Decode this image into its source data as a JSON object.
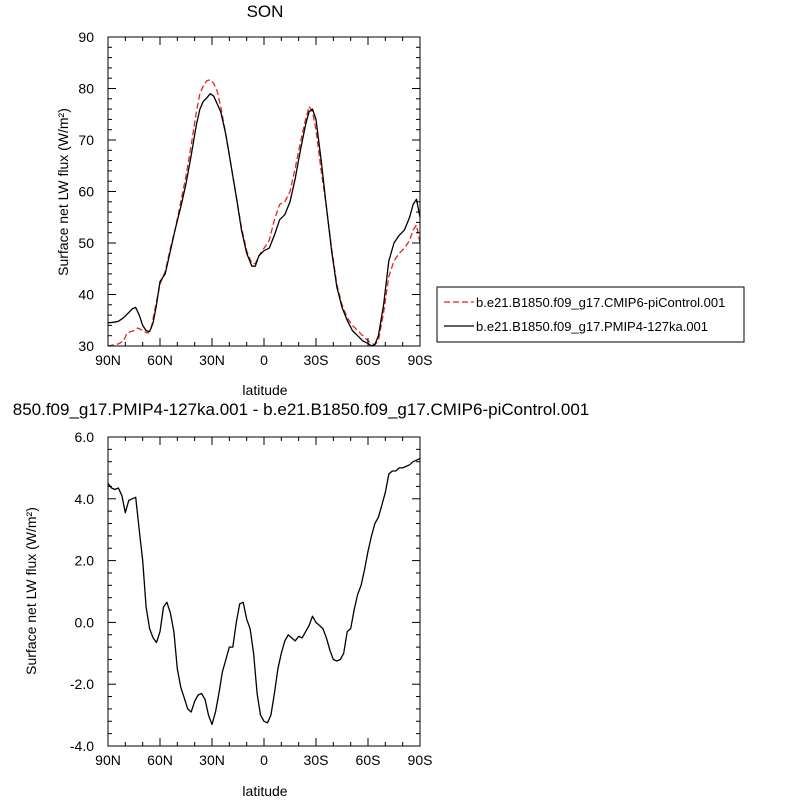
{
  "chart_data": [
    {
      "type": "line",
      "title": "SON",
      "xlabel": "latitude",
      "ylabel": "Surface net LW flux (W/m²)",
      "ylim": [
        30,
        90
      ],
      "xlim": [
        90,
        -90
      ],
      "x_tick_values": [
        90,
        60,
        30,
        0,
        -30,
        -60,
        -90
      ],
      "x_tick_labels": [
        "90N",
        "60N",
        "30N",
        "0",
        "30S",
        "60S",
        "90S"
      ],
      "y_ticks": [
        30,
        40,
        50,
        60,
        70,
        80,
        90
      ],
      "y_tick_labels": [
        "30",
        "40",
        "50",
        "60",
        "70",
        "80",
        "90"
      ],
      "grid": false,
      "legend_position": "right",
      "series": [
        {
          "name": "b.e21.B1850.f09_g17.CMIP6-piControl.001",
          "color": "#e0241c",
          "dash": "dashed",
          "x": [
            90,
            87,
            84,
            81,
            79,
            77,
            75,
            73,
            71,
            69,
            67,
            65,
            63,
            60,
            57,
            54,
            51,
            48,
            45,
            42,
            39,
            37,
            35,
            33,
            31,
            29,
            27,
            25,
            22,
            19,
            16,
            13,
            10,
            7,
            5,
            3,
            0,
            -3,
            -6,
            -9,
            -12,
            -15,
            -18,
            -21,
            -24,
            -26,
            -28,
            -30,
            -33,
            -36,
            -39,
            -42,
            -45,
            -48,
            -51,
            -54,
            -57,
            -60,
            -62,
            -64,
            -66,
            -69,
            -72,
            -75,
            -78,
            -81,
            -84,
            -86,
            -88,
            -90
          ],
          "y": [
            30.0,
            30.2,
            30.4,
            31.0,
            32.5,
            32.8,
            33.0,
            33.5,
            33.2,
            32.8,
            32.5,
            33.5,
            37.0,
            42.0,
            44.5,
            49.0,
            53.0,
            58.0,
            63.0,
            69.0,
            75.5,
            79.0,
            80.5,
            81.5,
            81.7,
            81.0,
            79.5,
            76.5,
            71.0,
            65.0,
            59.0,
            53.0,
            48.5,
            46.0,
            46.0,
            47.5,
            49.0,
            50.5,
            54.5,
            57.5,
            58.0,
            60.0,
            64.5,
            69.5,
            74.0,
            76.5,
            75.5,
            72.0,
            64.0,
            57.0,
            49.0,
            42.0,
            38.0,
            35.5,
            34.0,
            33.0,
            32.0,
            31.0,
            30.5,
            30.3,
            31.0,
            36.5,
            43.5,
            46.5,
            48.0,
            49.0,
            50.5,
            52.5,
            53.5,
            50.0
          ]
        },
        {
          "name": "b.e21.B1850.f09_g17.PMIP4-127ka.001",
          "color": "#000000",
          "dash": "solid",
          "x": [
            90,
            87,
            84,
            81,
            78,
            76,
            74,
            72,
            70,
            68,
            66,
            64,
            62,
            60,
            57,
            54,
            51,
            48,
            45,
            42,
            39,
            37,
            35,
            33,
            31,
            29,
            27,
            25,
            22,
            19,
            16,
            13,
            10,
            7,
            5,
            3,
            0,
            -3,
            -6,
            -9,
            -12,
            -15,
            -18,
            -21,
            -24,
            -26,
            -28,
            -30,
            -33,
            -36,
            -39,
            -42,
            -45,
            -48,
            -51,
            -54,
            -57,
            -60,
            -62,
            -64,
            -66,
            -69,
            -72,
            -75,
            -78,
            -81,
            -84,
            -86,
            -88,
            -90
          ],
          "y": [
            34.5,
            34.6,
            34.8,
            35.5,
            36.5,
            37.2,
            37.5,
            36.0,
            34.0,
            33.0,
            32.8,
            34.5,
            38.0,
            42.5,
            44.0,
            48.5,
            53.0,
            57.0,
            61.5,
            67.0,
            73.0,
            76.0,
            77.5,
            78.2,
            79.0,
            78.5,
            77.0,
            75.5,
            71.0,
            65.0,
            59.0,
            52.5,
            48.0,
            45.5,
            45.5,
            47.5,
            48.5,
            49.0,
            51.5,
            54.5,
            55.5,
            58.0,
            62.5,
            68.0,
            73.0,
            75.5,
            76.0,
            74.0,
            66.0,
            57.0,
            48.5,
            41.5,
            37.5,
            35.0,
            33.0,
            32.0,
            31.0,
            30.5,
            30.0,
            30.3,
            32.0,
            38.0,
            46.5,
            50.0,
            51.5,
            52.5,
            55.0,
            57.5,
            58.5,
            55.0
          ]
        }
      ]
    },
    {
      "type": "line",
      "title": "850.f09_g17.PMIP4-127ka.001 - b.e21.B1850.f09_g17.CMIP6-piControl.001",
      "xlabel": "latitude",
      "ylabel": "Surface net LW flux (W/m²)",
      "ylim": [
        -4,
        6
      ],
      "xlim": [
        90,
        -90
      ],
      "x_tick_values": [
        90,
        60,
        30,
        0,
        -30,
        -60,
        -90
      ],
      "x_tick_labels": [
        "90N",
        "60N",
        "30N",
        "0",
        "30S",
        "60S",
        "90S"
      ],
      "y_ticks": [
        -4,
        -2,
        0,
        2,
        4,
        6
      ],
      "y_tick_labels": [
        "-4.0",
        "-2.0",
        "0.0",
        "2.0",
        "4.0",
        "6.0"
      ],
      "grid": false,
      "series": [
        {
          "color": "#000000",
          "dash": "solid",
          "x": [
            90,
            88,
            86,
            84,
            82,
            80,
            78,
            76,
            74,
            72,
            70,
            68,
            66,
            64,
            62,
            60,
            58,
            56,
            54,
            52,
            50,
            48,
            46,
            44,
            42,
            40,
            38,
            36,
            34,
            32,
            30,
            28,
            26,
            24,
            22,
            20,
            18,
            16,
            14,
            12,
            10,
            8,
            6,
            4,
            2,
            0,
            -2,
            -4,
            -6,
            -8,
            -10,
            -12,
            -14,
            -16,
            -18,
            -20,
            -22,
            -24,
            -26,
            -28,
            -30,
            -32,
            -34,
            -36,
            -38,
            -40,
            -42,
            -44,
            -46,
            -48,
            -50,
            -52,
            -54,
            -56,
            -58,
            -60,
            -62,
            -64,
            -66,
            -68,
            -70,
            -72,
            -74,
            -76,
            -78,
            -80,
            -82,
            -84,
            -86,
            -88,
            -90
          ],
          "y": [
            4.5,
            4.35,
            4.3,
            4.35,
            4.1,
            3.55,
            3.95,
            4.0,
            4.05,
            3.0,
            2.0,
            0.5,
            -0.2,
            -0.5,
            -0.65,
            -0.3,
            0.5,
            0.65,
            0.3,
            -0.3,
            -1.5,
            -2.1,
            -2.45,
            -2.8,
            -2.9,
            -2.55,
            -2.35,
            -2.3,
            -2.5,
            -3.0,
            -3.3,
            -2.9,
            -2.3,
            -1.6,
            -1.2,
            -0.8,
            -0.8,
            0.0,
            0.6,
            0.65,
            0.1,
            -0.2,
            -1.0,
            -2.3,
            -3.0,
            -3.2,
            -3.25,
            -3.0,
            -2.3,
            -1.5,
            -1.0,
            -0.6,
            -0.4,
            -0.5,
            -0.6,
            -0.45,
            -0.5,
            -0.3,
            -0.1,
            0.2,
            0.0,
            -0.1,
            -0.2,
            -0.5,
            -0.9,
            -1.2,
            -1.25,
            -1.2,
            -1.0,
            -0.3,
            -0.2,
            0.4,
            0.9,
            1.2,
            1.7,
            2.3,
            2.8,
            3.2,
            3.4,
            3.8,
            4.2,
            4.8,
            4.9,
            4.9,
            5.0,
            5.0,
            5.05,
            5.1,
            5.2,
            5.25,
            5.3
          ]
        }
      ]
    }
  ]
}
